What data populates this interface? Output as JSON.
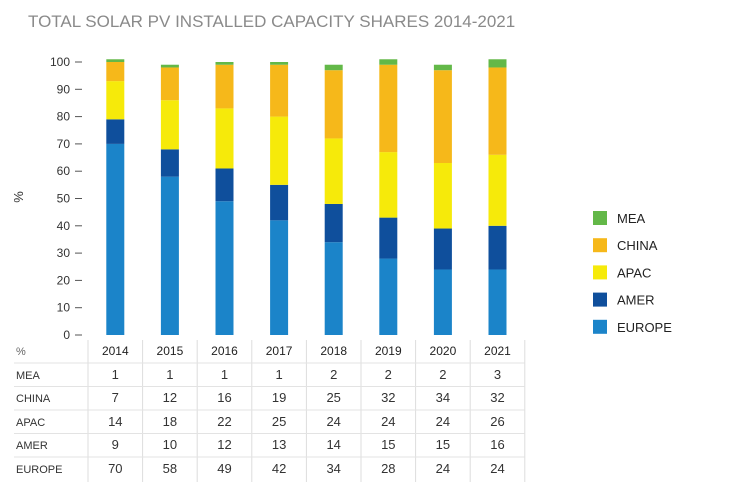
{
  "chart_data": {
    "type": "bar",
    "stacked": true,
    "title": "TOTAL SOLAR PV INSTALLED CAPACITY SHARES 2014-2021",
    "ylabel": "%",
    "ylim": [
      0,
      100
    ],
    "yticks": [
      0,
      10,
      20,
      30,
      40,
      50,
      60,
      70,
      80,
      90,
      100
    ],
    "grid": false,
    "legend_position": "right",
    "table_corner_label": "%",
    "categories": [
      "2014",
      "2015",
      "2016",
      "2017",
      "2018",
      "2019",
      "2020",
      "2021"
    ],
    "series": [
      {
        "name": "MEA",
        "color": "#63b848",
        "values": [
          1,
          1,
          1,
          1,
          2,
          2,
          2,
          3
        ]
      },
      {
        "name": "CHINA",
        "color": "#f6b81a",
        "values": [
          7,
          12,
          16,
          19,
          25,
          32,
          34,
          32
        ]
      },
      {
        "name": "APAC",
        "color": "#f6ea0a",
        "values": [
          14,
          18,
          22,
          25,
          24,
          24,
          24,
          26
        ]
      },
      {
        "name": "AMER",
        "color": "#0f4f9c",
        "values": [
          9,
          10,
          12,
          13,
          14,
          15,
          15,
          16
        ]
      },
      {
        "name": "EUROPE",
        "color": "#1b84c9",
        "values": [
          70,
          58,
          49,
          42,
          34,
          28,
          24,
          24
        ]
      }
    ]
  }
}
